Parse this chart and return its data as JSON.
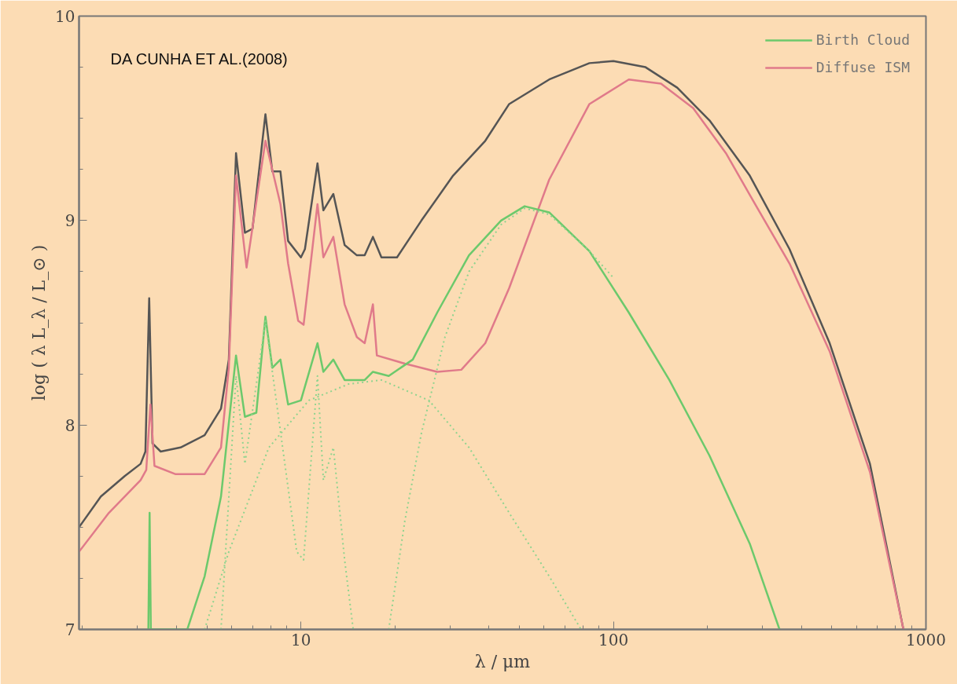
{
  "chart_data": {
    "type": "line",
    "xlabel": "λ / μm",
    "ylabel": "log ( λ L_λ / L_⊙ )",
    "annotations": [
      "DA CUNHA ET AL.(2008)"
    ],
    "log": "x",
    "xlim": [
      1.95,
      1000
    ],
    "ylim": [
      7,
      10
    ],
    "xticks": [
      10,
      100,
      1000
    ],
    "yticks": [
      7,
      8,
      9,
      10
    ],
    "grid": false,
    "legend": "top right",
    "marker": "none",
    "series": [
      {
        "color": "#555555",
        "line_style": "solid",
        "x": [
          1.95,
          2.29,
          2.73,
          3.07,
          3.18,
          3.27,
          3.35,
          3.56,
          4.12,
          4.92,
          5.55,
          5.88,
          6.2,
          6.62,
          7.0,
          7.7,
          8.1,
          8.6,
          9.1,
          10,
          10.3,
          11.3,
          11.8,
          12.7,
          13.8,
          15.1,
          16,
          17,
          18.1,
          20.3,
          24.3,
          30.7,
          38.9,
          46.4,
          62.3,
          83.8,
          100,
          126.7,
          160,
          203,
          273,
          366,
          492,
          662,
          847
        ],
        "values": [
          7.5,
          7.65,
          7.75,
          7.81,
          7.87,
          8.62,
          7.91,
          7.87,
          7.89,
          7.95,
          8.08,
          8.32,
          9.33,
          8.94,
          8.96,
          9.52,
          9.24,
          9.24,
          8.9,
          8.82,
          8.86,
          9.28,
          9.05,
          9.13,
          8.88,
          8.83,
          8.83,
          8.92,
          8.82,
          8.82,
          9.0,
          9.22,
          9.39,
          9.57,
          9.69,
          9.77,
          9.78,
          9.75,
          9.65,
          9.49,
          9.22,
          8.86,
          8.4,
          7.81,
          7.0
        ]
      },
      {
        "name": "Diffuse ISM",
        "color": "#e07a8a",
        "line_style": "solid",
        "x": [
          1.95,
          2.43,
          3.07,
          3.2,
          3.3,
          3.4,
          3.96,
          4.92,
          5.55,
          5.88,
          6.2,
          6.7,
          7.7,
          8.6,
          9.1,
          9.8,
          10.2,
          11.3,
          11.8,
          12.7,
          13.8,
          15.1,
          16,
          17,
          17.5,
          21.5,
          27.3,
          32.6,
          38.9,
          46.4,
          62.3,
          83.8,
          112,
          142,
          180,
          229,
          289,
          366,
          492,
          662,
          847
        ],
        "values": [
          7.38,
          7.57,
          7.73,
          7.78,
          8.1,
          7.8,
          7.76,
          7.76,
          7.89,
          8.28,
          9.22,
          8.77,
          9.39,
          9.08,
          8.79,
          8.51,
          8.49,
          9.08,
          8.82,
          8.92,
          8.59,
          8.43,
          8.4,
          8.59,
          8.34,
          8.3,
          8.26,
          8.27,
          8.4,
          8.67,
          9.2,
          9.57,
          9.69,
          9.67,
          9.55,
          9.33,
          9.06,
          8.79,
          8.36,
          7.77,
          7.0
        ]
      },
      {
        "name": "Birth Cloud",
        "color": "#6cc96c",
        "line_style": "solid",
        "x": [
          3.25,
          3.28,
          3.31,
          4.33,
          4.92,
          5.55,
          6.2,
          6.62,
          7.2,
          7.7,
          8.1,
          8.6,
          9.1,
          10,
          11.3,
          11.8,
          12.7,
          13.8,
          16,
          17,
          19.1,
          22.8,
          27.3,
          34.5,
          43.7,
          52,
          62.3,
          83.8,
          112,
          151,
          203,
          273,
          340
        ],
        "values": [
          7.0,
          7.57,
          7.0,
          7.0,
          7.26,
          7.65,
          8.34,
          8.04,
          8.06,
          8.53,
          8.28,
          8.32,
          8.1,
          8.12,
          8.4,
          8.26,
          8.32,
          8.22,
          8.22,
          8.26,
          8.24,
          8.32,
          8.55,
          8.83,
          9.0,
          9.07,
          9.04,
          8.85,
          8.55,
          8.22,
          7.85,
          7.42,
          7.0
        ]
      },
      {
        "color": "#8fd48f",
        "line_style": "dotted",
        "x": [
          4.92,
          5.88,
          7.9,
          10.6,
          14.2,
          18.1,
          25.7,
          34.5,
          46.4,
          62.3,
          78.8
        ],
        "values": [
          7.0,
          7.38,
          7.89,
          8.12,
          8.2,
          8.22,
          8.12,
          7.89,
          7.57,
          7.26,
          7.0
        ]
      },
      {
        "color": "#8fd48f",
        "line_style": "dotted",
        "x": [
          5.55,
          6.2,
          6.62,
          7.7,
          9.7,
          10.2,
          11.3,
          11.8,
          12.7,
          13.8,
          14.7
        ],
        "values": [
          7.0,
          8.24,
          7.81,
          8.51,
          7.38,
          7.34,
          8.24,
          7.73,
          7.89,
          7.34,
          7.0
        ]
      },
      {
        "color": "#8fd48f",
        "line_style": "dotted",
        "x": [
          19.1,
          21.5,
          24.3,
          28.9,
          34.5,
          43.7,
          52,
          62.3,
          83.8,
          100
        ],
        "values": [
          7.0,
          7.53,
          7.96,
          8.43,
          8.75,
          8.98,
          9.06,
          9.03,
          8.85,
          8.72
        ]
      }
    ]
  }
}
